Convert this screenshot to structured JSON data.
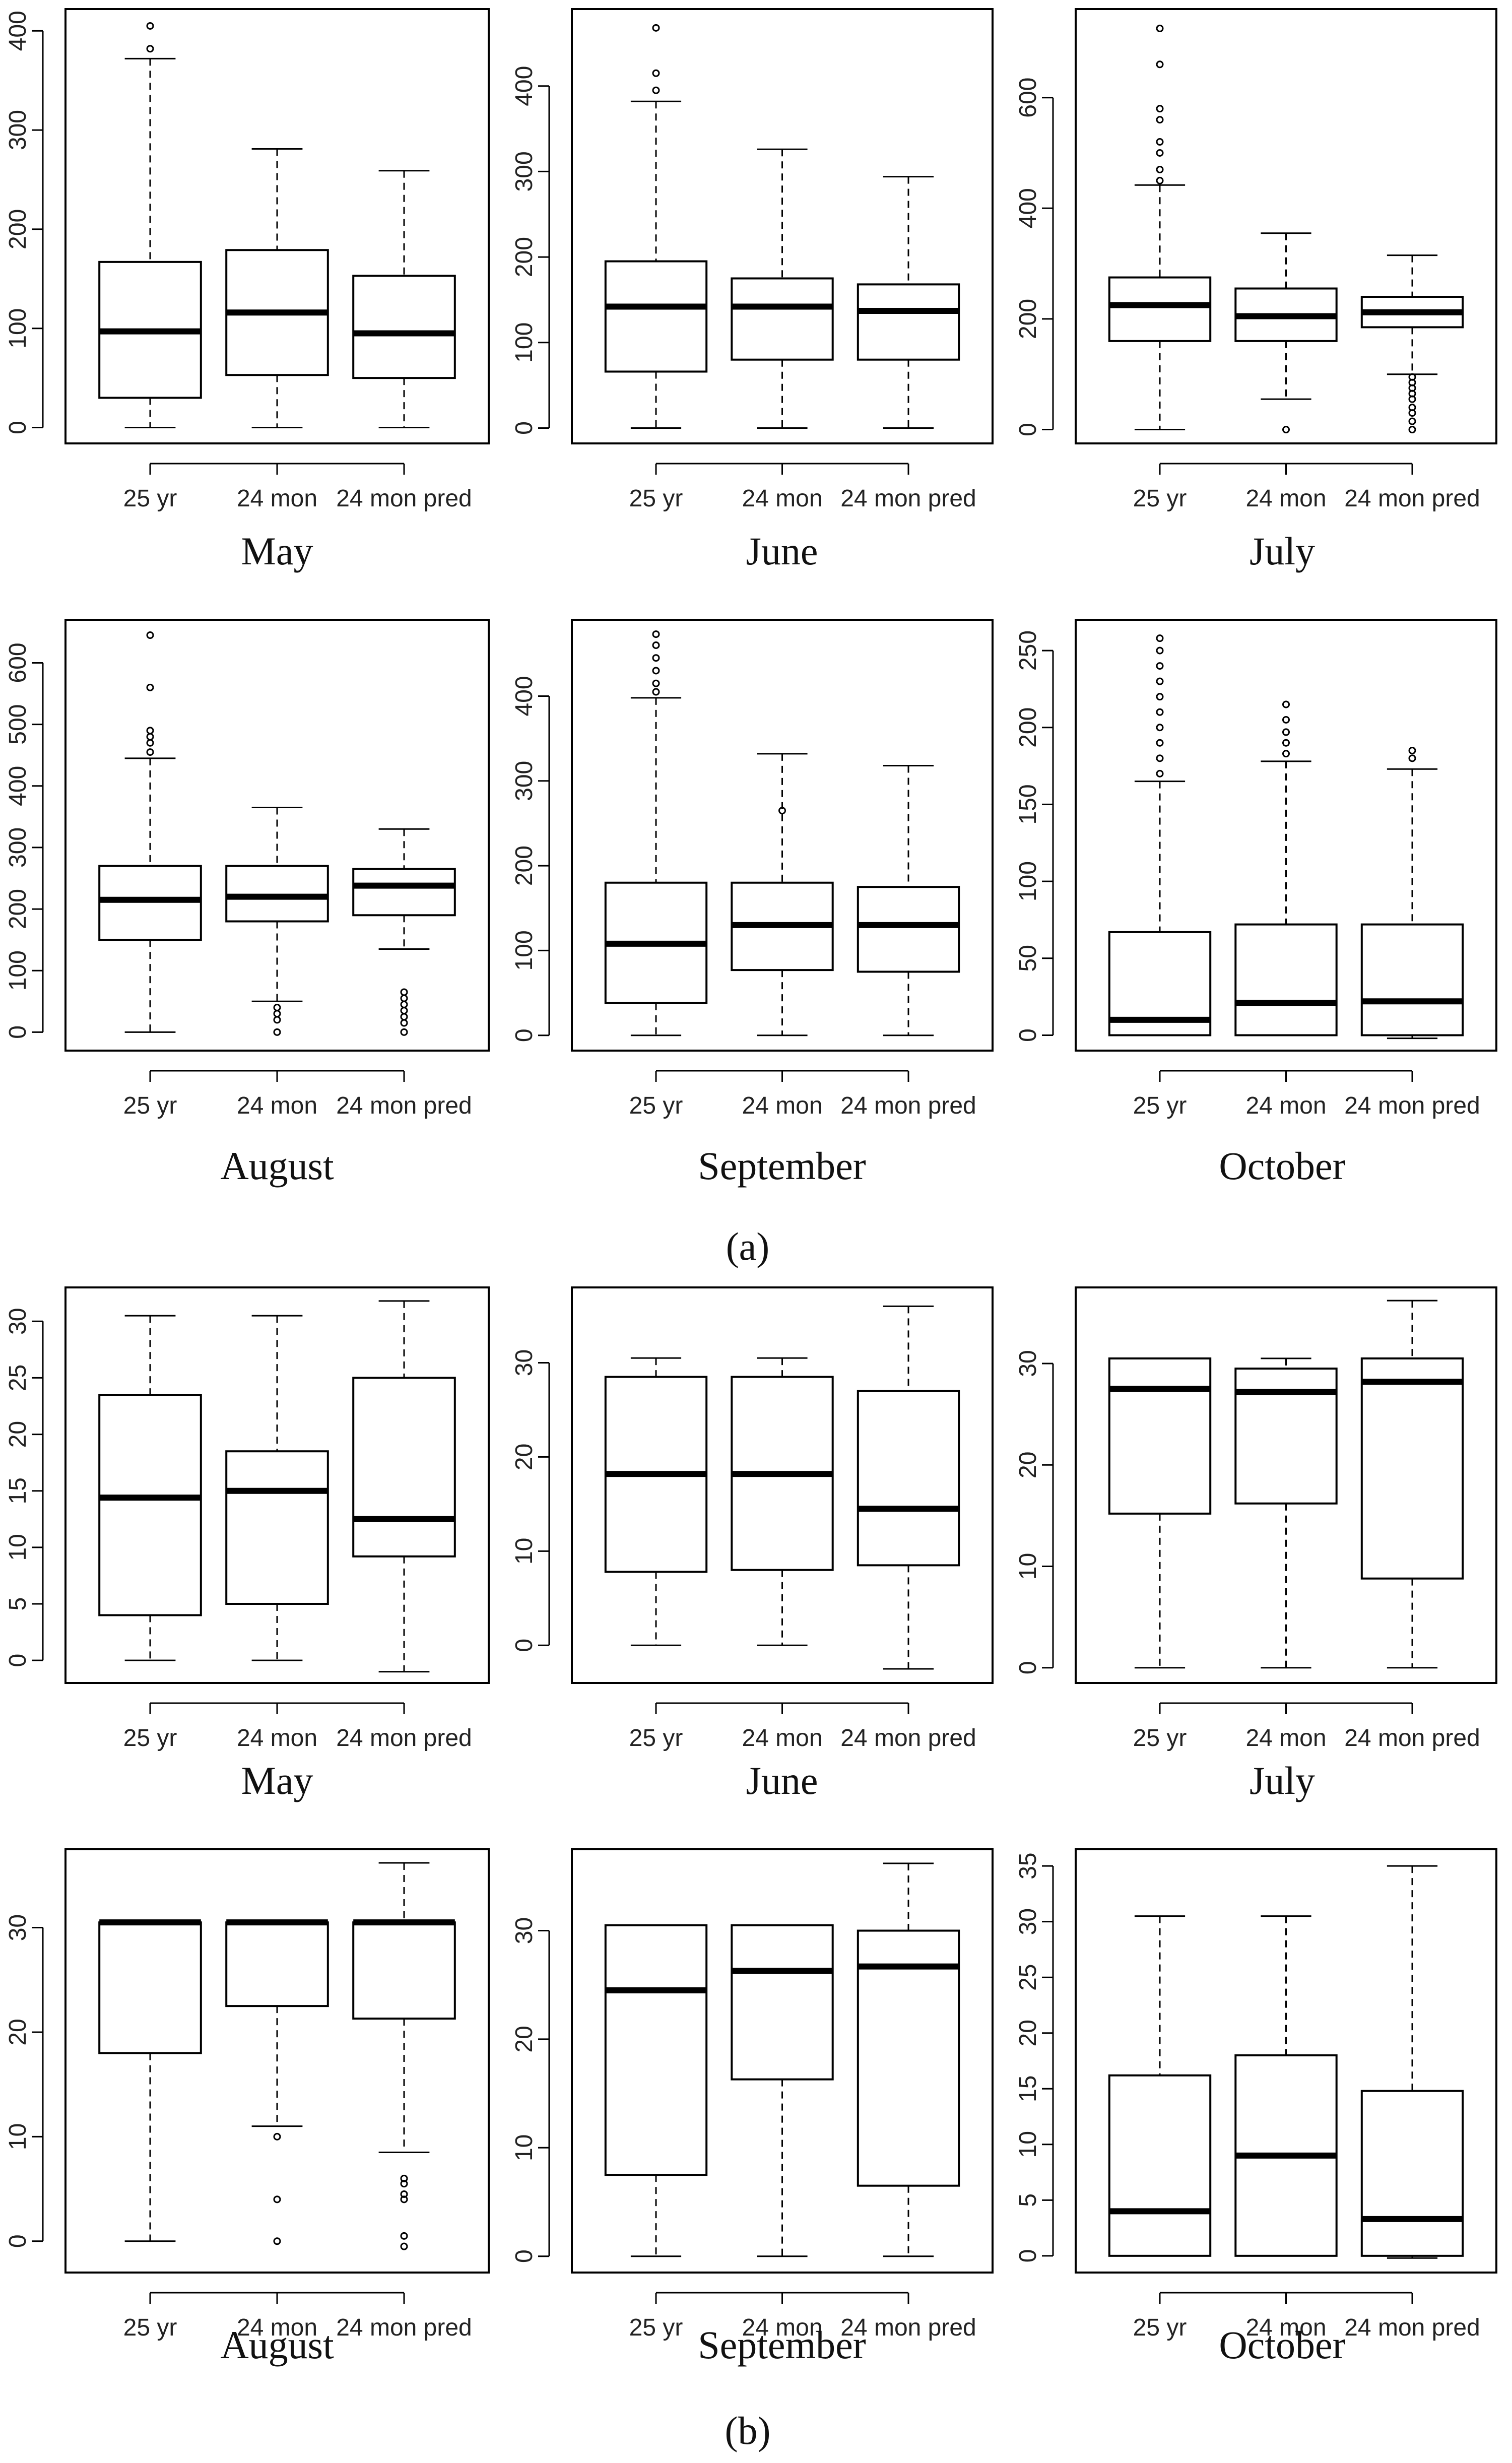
{
  "panel_labels": [
    "(a)",
    "(b)"
  ],
  "chart_data": [
    {
      "type": "boxplot",
      "panel": "a",
      "title": "May",
      "categories": [
        "25 yr",
        "24 mon",
        "24 mon pred"
      ],
      "ylim": [
        -16,
        422
      ],
      "yticks": [
        0,
        100,
        200,
        300,
        400
      ],
      "boxes": [
        {
          "min": 0,
          "q1": 30,
          "median": 97,
          "q3": 167,
          "max": 372,
          "outliers": [
            382,
            405
          ]
        },
        {
          "min": 0,
          "q1": 53,
          "median": 116,
          "q3": 179,
          "max": 281,
          "outliers": []
        },
        {
          "min": 0,
          "q1": 50,
          "median": 95,
          "q3": 153,
          "max": 259,
          "outliers": []
        }
      ]
    },
    {
      "type": "boxplot",
      "panel": "a",
      "title": "June",
      "categories": [
        "25 yr",
        "24 mon",
        "24 mon pred"
      ],
      "ylim": [
        -18,
        490
      ],
      "yticks": [
        0,
        100,
        200,
        300,
        400
      ],
      "boxes": [
        {
          "min": 0,
          "q1": 66,
          "median": 142,
          "q3": 195,
          "max": 382,
          "outliers": [
            395,
            415,
            468
          ]
        },
        {
          "min": 0,
          "q1": 80,
          "median": 142,
          "q3": 175,
          "max": 326,
          "outliers": []
        },
        {
          "min": 0,
          "q1": 80,
          "median": 137,
          "q3": 168,
          "max": 294,
          "outliers": []
        }
      ]
    },
    {
      "type": "boxplot",
      "panel": "a",
      "title": "July",
      "categories": [
        "25 yr",
        "24 mon",
        "24 mon pred"
      ],
      "ylim": [
        -25,
        760
      ],
      "yticks": [
        0,
        200,
        400,
        600
      ],
      "boxes": [
        {
          "min": 0,
          "q1": 160,
          "median": 225,
          "q3": 275,
          "max": 442,
          "outliers": [
            450,
            470,
            500,
            520,
            560,
            580,
            660,
            725
          ]
        },
        {
          "min": 55,
          "q1": 160,
          "median": 205,
          "q3": 255,
          "max": 355,
          "outliers": [
            0
          ]
        },
        {
          "min": 100,
          "q1": 185,
          "median": 212,
          "q3": 240,
          "max": 315,
          "outliers": [
            0,
            15,
            30,
            40,
            55,
            65,
            75,
            85,
            95
          ]
        }
      ]
    },
    {
      "type": "boxplot",
      "panel": "a",
      "title": "August",
      "categories": [
        "25 yr",
        "24 mon",
        "24 mon pred"
      ],
      "ylim": [
        -30,
        670
      ],
      "yticks": [
        0,
        100,
        200,
        300,
        400,
        500,
        600
      ],
      "boxes": [
        {
          "min": 0,
          "q1": 150,
          "median": 215,
          "q3": 270,
          "max": 445,
          "outliers": [
            455,
            470,
            480,
            490,
            560,
            645
          ]
        },
        {
          "min": 50,
          "q1": 180,
          "median": 220,
          "q3": 270,
          "max": 365,
          "outliers": [
            0,
            20,
            30,
            40
          ]
        },
        {
          "min": 135,
          "q1": 190,
          "median": 238,
          "q3": 265,
          "max": 330,
          "outliers": [
            0,
            15,
            25,
            35,
            45,
            55,
            65
          ]
        }
      ]
    },
    {
      "type": "boxplot",
      "panel": "a",
      "title": "September",
      "categories": [
        "25 yr",
        "24 mon",
        "24 mon pred"
      ],
      "ylim": [
        -18,
        490
      ],
      "yticks": [
        0,
        100,
        200,
        300,
        400
      ],
      "boxes": [
        {
          "min": 0,
          "q1": 38,
          "median": 108,
          "q3": 180,
          "max": 398,
          "outliers": [
            405,
            415,
            430,
            445,
            460,
            473
          ]
        },
        {
          "min": 0,
          "q1": 77,
          "median": 130,
          "q3": 180,
          "max": 332,
          "outliers": [
            265
          ]
        },
        {
          "min": 0,
          "q1": 75,
          "median": 130,
          "q3": 175,
          "max": 318,
          "outliers": []
        }
      ]
    },
    {
      "type": "boxplot",
      "panel": "a",
      "title": "October",
      "categories": [
        "25 yr",
        "24 mon",
        "24 mon pred"
      ],
      "ylim": [
        -10,
        270
      ],
      "yticks": [
        0,
        50,
        100,
        150,
        200,
        250
      ],
      "boxes": [
        {
          "min": 0,
          "q1": 0,
          "median": 10,
          "q3": 67,
          "max": 165,
          "outliers": [
            170,
            180,
            190,
            200,
            210,
            220,
            230,
            240,
            250,
            258
          ]
        },
        {
          "min": 0,
          "q1": 0,
          "median": 21,
          "q3": 72,
          "max": 178,
          "outliers": [
            183,
            190,
            197,
            205,
            215
          ]
        },
        {
          "min": -2,
          "q1": 0,
          "median": 22,
          "q3": 72,
          "max": 173,
          "outliers": [
            180,
            185
          ]
        }
      ]
    },
    {
      "type": "boxplot",
      "panel": "b",
      "title": "May",
      "categories": [
        "25 yr",
        "24 mon",
        "24 mon pred"
      ],
      "ylim": [
        -2,
        33
      ],
      "yticks": [
        0,
        5,
        10,
        15,
        20,
        25,
        30
      ],
      "boxes": [
        {
          "min": 0,
          "q1": 4,
          "median": 14.4,
          "q3": 23.5,
          "max": 30.5,
          "outliers": []
        },
        {
          "min": 0,
          "q1": 5,
          "median": 15,
          "q3": 18.5,
          "max": 30.5,
          "outliers": []
        },
        {
          "min": -1,
          "q1": 9.2,
          "median": 12.5,
          "q3": 25,
          "max": 31.8,
          "outliers": []
        }
      ]
    },
    {
      "type": "boxplot",
      "panel": "b",
      "title": "June",
      "categories": [
        "25 yr",
        "24 mon",
        "24 mon pred"
      ],
      "ylim": [
        -4,
        38
      ],
      "yticks": [
        0,
        10,
        20,
        30
      ],
      "boxes": [
        {
          "min": 0,
          "q1": 7.8,
          "median": 18.2,
          "q3": 28.5,
          "max": 30.5,
          "outliers": []
        },
        {
          "min": 0,
          "q1": 8,
          "median": 18.2,
          "q3": 28.5,
          "max": 30.5,
          "outliers": []
        },
        {
          "min": -2.5,
          "q1": 8.5,
          "median": 14.5,
          "q3": 27,
          "max": 36,
          "outliers": []
        }
      ]
    },
    {
      "type": "boxplot",
      "panel": "b",
      "title": "July",
      "categories": [
        "25 yr",
        "24 mon",
        "24 mon pred"
      ],
      "ylim": [
        -1.5,
        37.5
      ],
      "yticks": [
        0,
        10,
        20,
        30
      ],
      "boxes": [
        {
          "min": 0,
          "q1": 15.2,
          "median": 27.5,
          "q3": 30.5,
          "max": 30.5,
          "outliers": []
        },
        {
          "min": 0,
          "q1": 16.2,
          "median": 27.2,
          "q3": 29.5,
          "max": 30.5,
          "outliers": []
        },
        {
          "min": 0,
          "q1": 8.8,
          "median": 28.2,
          "q3": 30.5,
          "max": 36.2,
          "outliers": []
        }
      ]
    },
    {
      "type": "boxplot",
      "panel": "b",
      "title": "August",
      "categories": [
        "25 yr",
        "24 mon",
        "24 mon pred"
      ],
      "ylim": [
        -3,
        37.5
      ],
      "yticks": [
        0,
        10,
        20,
        30
      ],
      "boxes": [
        {
          "min": 0,
          "q1": 18,
          "median": 30.5,
          "q3": 30.5,
          "max": 30.5,
          "outliers": []
        },
        {
          "min": 11,
          "q1": 22.5,
          "median": 30.5,
          "q3": 30.5,
          "max": 30.5,
          "outliers": [
            0,
            4,
            10
          ]
        },
        {
          "min": 8.5,
          "q1": 21.3,
          "median": 30.5,
          "q3": 30.5,
          "max": 36.2,
          "outliers": [
            -0.5,
            0.5,
            4,
            4.5,
            5.5,
            6
          ]
        }
      ]
    },
    {
      "type": "boxplot",
      "panel": "b",
      "title": "September",
      "categories": [
        "25 yr",
        "24 mon",
        "24 mon pred"
      ],
      "ylim": [
        -1.5,
        37.5
      ],
      "yticks": [
        0,
        10,
        20,
        30
      ],
      "boxes": [
        {
          "min": 0,
          "q1": 7.5,
          "median": 24.5,
          "q3": 30.5,
          "max": 30.5,
          "outliers": []
        },
        {
          "min": 0,
          "q1": 16.3,
          "median": 26.3,
          "q3": 30.5,
          "max": 30.5,
          "outliers": []
        },
        {
          "min": 0,
          "q1": 6.5,
          "median": 26.7,
          "q3": 30,
          "max": 36.2,
          "outliers": []
        }
      ]
    },
    {
      "type": "boxplot",
      "panel": "b",
      "title": "October",
      "categories": [
        "25 yr",
        "24 mon",
        "24 mon pred"
      ],
      "ylim": [
        -1.5,
        36.5
      ],
      "yticks": [
        0,
        5,
        10,
        15,
        20,
        25,
        30,
        35
      ],
      "boxes": [
        {
          "min": 0,
          "q1": 0,
          "median": 4,
          "q3": 16.2,
          "max": 30.5,
          "outliers": []
        },
        {
          "min": 0,
          "q1": 0,
          "median": 9,
          "q3": 18,
          "max": 30.5,
          "outliers": []
        },
        {
          "min": -0.2,
          "q1": 0,
          "median": 3.3,
          "q3": 14.8,
          "max": 35,
          "outliers": []
        }
      ]
    }
  ]
}
